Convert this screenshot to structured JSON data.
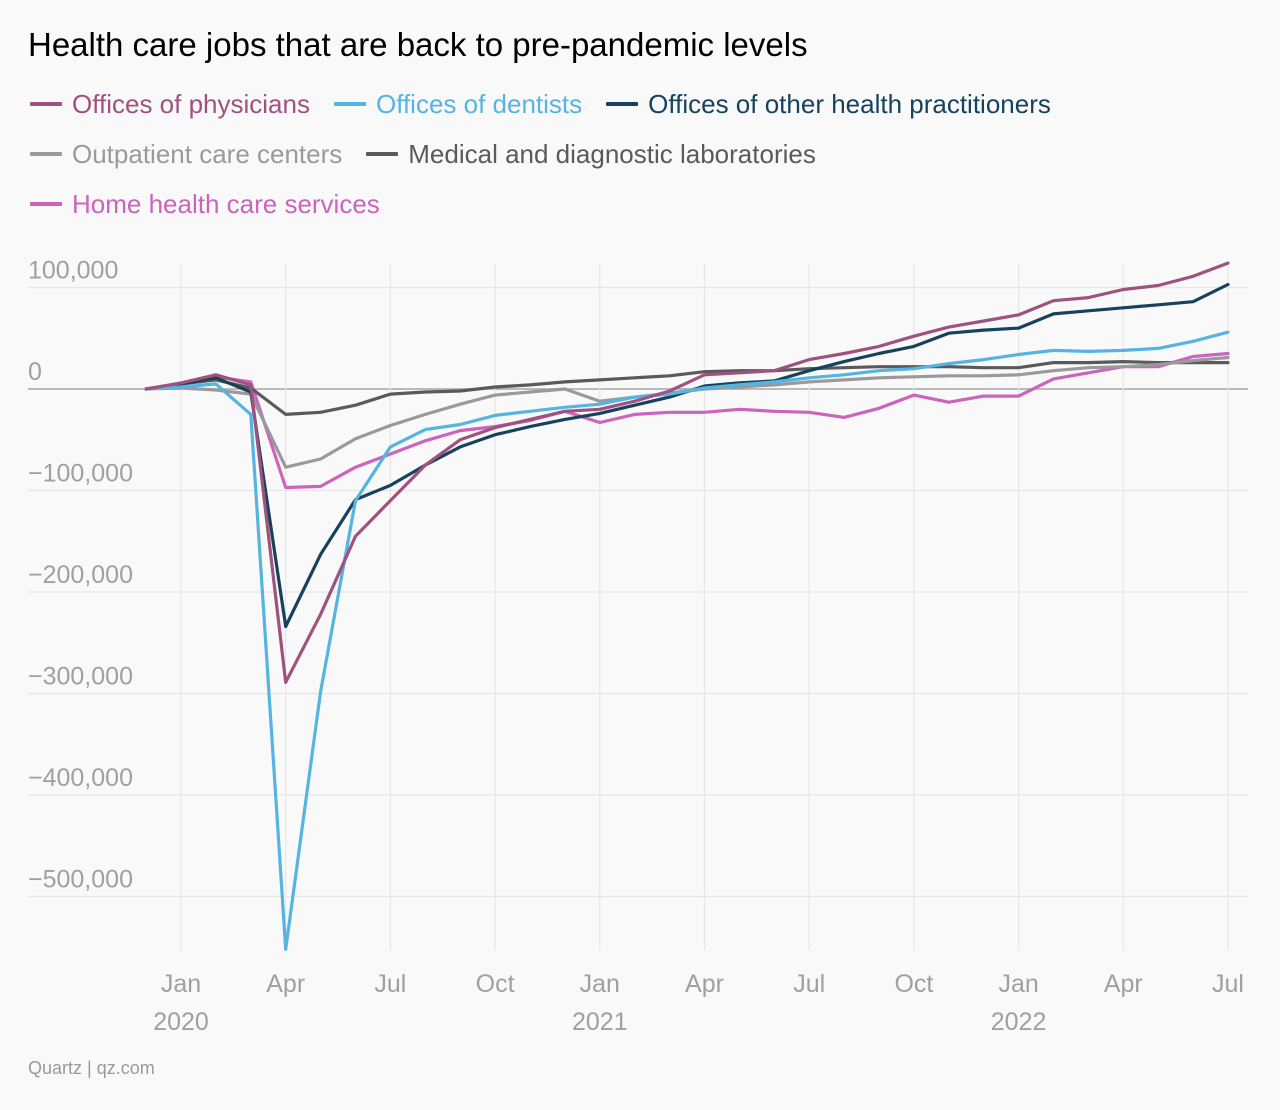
{
  "title": "Health care jobs that are back to pre-pandemic levels",
  "source": "Quartz | qz.com",
  "chart_data": {
    "type": "line",
    "title": "Health care jobs that are back to pre-pandemic levels",
    "xlabel": "",
    "ylabel": "",
    "ylim": [
      -560000,
      125000
    ],
    "y_ticks": [
      100000,
      0,
      -100000,
      -200000,
      -300000,
      -400000,
      -500000
    ],
    "y_tick_labels": [
      "100,000",
      "0",
      "−100,000",
      "−200,000",
      "−300,000",
      "−400,000",
      "−500,000"
    ],
    "x_ticks": [
      {
        "date": "2020-01",
        "label": "Jan",
        "year": "2020"
      },
      {
        "date": "2020-04",
        "label": "Apr",
        "year": ""
      },
      {
        "date": "2020-07",
        "label": "Jul",
        "year": ""
      },
      {
        "date": "2020-10",
        "label": "Oct",
        "year": ""
      },
      {
        "date": "2021-01",
        "label": "Jan",
        "year": "2021"
      },
      {
        "date": "2021-04",
        "label": "Apr",
        "year": ""
      },
      {
        "date": "2021-07",
        "label": "Jul",
        "year": ""
      },
      {
        "date": "2021-10",
        "label": "Oct",
        "year": ""
      },
      {
        "date": "2022-01",
        "label": "Jan",
        "year": "2022"
      },
      {
        "date": "2022-04",
        "label": "Apr",
        "year": ""
      },
      {
        "date": "2022-07",
        "label": "Jul",
        "year": ""
      }
    ],
    "grid": true,
    "legend_position": "top-left",
    "x": [
      "2019-12",
      "2020-01",
      "2020-02",
      "2020-03",
      "2020-04",
      "2020-05",
      "2020-06",
      "2020-07",
      "2020-08",
      "2020-09",
      "2020-10",
      "2020-11",
      "2020-12",
      "2021-01",
      "2021-02",
      "2021-03",
      "2021-04",
      "2021-05",
      "2021-06",
      "2021-07",
      "2021-08",
      "2021-09",
      "2021-10",
      "2021-11",
      "2021-12",
      "2022-01",
      "2022-02",
      "2022-03",
      "2022-04",
      "2022-05",
      "2022-06",
      "2022-07"
    ],
    "series": [
      {
        "name": "Offices of physicians",
        "color": "#a0527f",
        "values": [
          0,
          6000,
          14000,
          4000,
          -289000,
          -222000,
          -145000,
          -110000,
          -75000,
          -50000,
          -38000,
          -30000,
          -22000,
          -20000,
          -12000,
          -2000,
          14000,
          16000,
          18000,
          29000,
          35000,
          42000,
          52000,
          61000,
          67000,
          73000,
          87000,
          90000,
          98000,
          102000,
          111000,
          124000
        ]
      },
      {
        "name": "Offices of dentists",
        "color": "#56b4e0",
        "values": [
          0,
          2000,
          5000,
          -25000,
          -552000,
          -298000,
          -110000,
          -57000,
          -40000,
          -35000,
          -26000,
          -22000,
          -18000,
          -15000,
          -8000,
          -5000,
          1000,
          4000,
          7000,
          11000,
          14000,
          18000,
          20000,
          25000,
          29000,
          34000,
          38000,
          37000,
          38000,
          40000,
          47000,
          56000
        ]
      },
      {
        "name": "Offices of other health practitioners",
        "color": "#17425e",
        "values": [
          0,
          5000,
          11000,
          -3000,
          -234000,
          -163000,
          -109000,
          -95000,
          -75000,
          -57000,
          -45000,
          -37000,
          -30000,
          -24000,
          -16000,
          -8000,
          3000,
          6000,
          8000,
          18000,
          27000,
          35000,
          42000,
          55000,
          58000,
          60000,
          74000,
          77000,
          80000,
          83000,
          86000,
          103000
        ]
      },
      {
        "name": "Outpatient care centers",
        "color": "#9a9a9a",
        "values": [
          0,
          1000,
          -1000,
          -5000,
          -77000,
          -69000,
          -49000,
          -36000,
          -25000,
          -15000,
          -6000,
          -3000,
          0,
          -12000,
          -8000,
          -4000,
          0,
          2000,
          4000,
          7000,
          9000,
          11000,
          12000,
          13000,
          13000,
          14000,
          18000,
          21000,
          22000,
          24000,
          28000,
          31000
        ]
      },
      {
        "name": "Medical and diagnostic laboratories",
        "color": "#5a5a5a",
        "values": [
          0,
          5000,
          9000,
          1000,
          -25000,
          -23000,
          -16000,
          -5000,
          -3000,
          -2000,
          2000,
          4000,
          7000,
          9000,
          11000,
          13000,
          17000,
          18000,
          18000,
          20000,
          21000,
          22000,
          22000,
          22000,
          21000,
          21000,
          26000,
          26000,
          27000,
          26000,
          26000,
          26000
        ]
      },
      {
        "name": "Home health care services",
        "color": "#cc63bd",
        "values": [
          0,
          5000,
          12000,
          7000,
          -97000,
          -96000,
          -77000,
          -64000,
          -51000,
          -41000,
          -37000,
          -31000,
          -22000,
          -33000,
          -25000,
          -23000,
          -23000,
          -20000,
          -22000,
          -23000,
          -28000,
          -19000,
          -6000,
          -13000,
          -7000,
          -7000,
          10000,
          16000,
          22000,
          22000,
          32000,
          35000
        ]
      }
    ]
  }
}
